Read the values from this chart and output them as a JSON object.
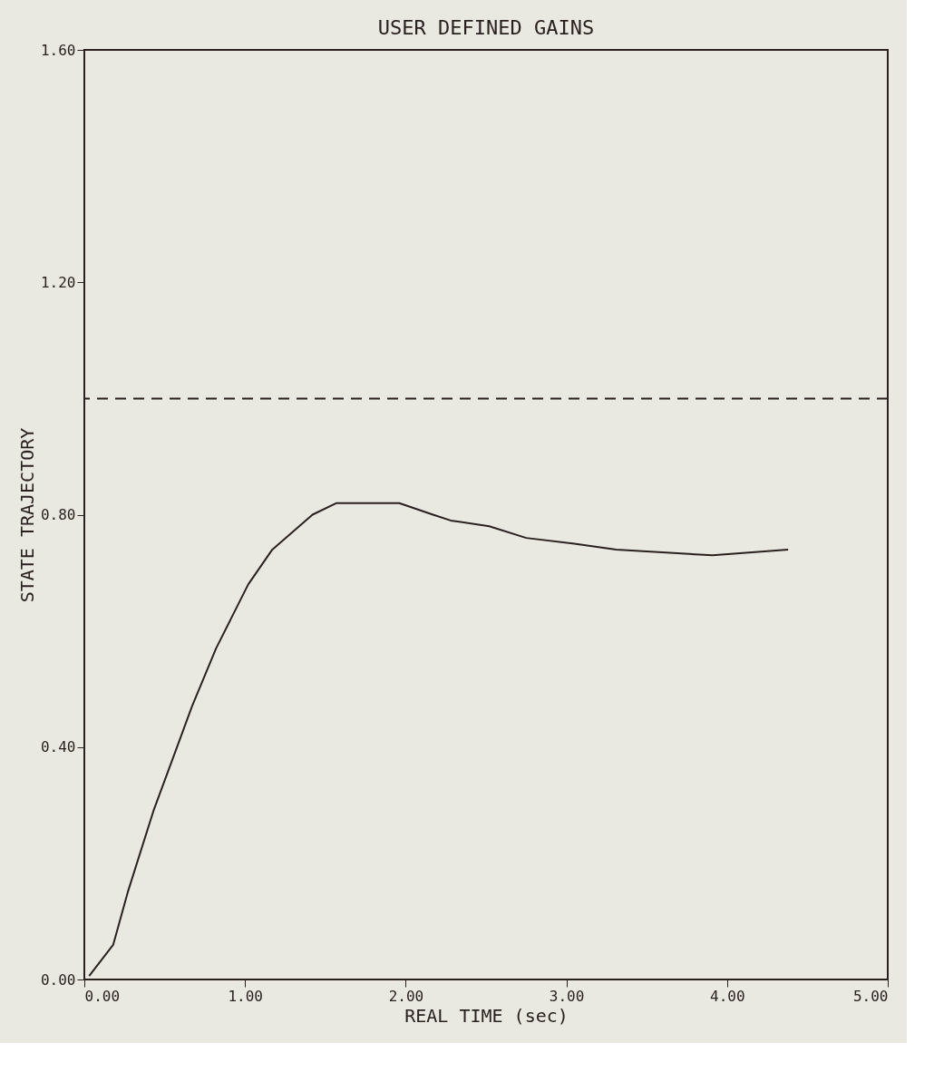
{
  "chart_data": {
    "type": "line",
    "title": "USER DEFINED GAINS",
    "xlabel": "REAL TIME (sec)",
    "ylabel": "STATE TRAJECTORY",
    "x": [
      0.03,
      0.18,
      0.27,
      0.43,
      0.55,
      0.67,
      0.82,
      1.02,
      1.17,
      1.42,
      1.57,
      1.75,
      1.96,
      2.17,
      2.28,
      2.52,
      2.75,
      3.05,
      3.31,
      3.91,
      4.38
    ],
    "series": [
      {
        "color": "#2a2020",
        "values": [
          0.006,
          0.06,
          0.15,
          0.29,
          0.38,
          0.47,
          0.57,
          0.68,
          0.74,
          0.8,
          0.82,
          0.82,
          0.82,
          0.8,
          0.79,
          0.78,
          0.76,
          0.75,
          0.74,
          0.73,
          0.74
        ]
      }
    ],
    "xlim": [
      0,
      5
    ],
    "ylim": [
      0,
      1.6
    ],
    "xticks": [
      {
        "value": 0,
        "label": "0.00"
      },
      {
        "value": 1,
        "label": "1.00"
      },
      {
        "value": 2,
        "label": "2.00"
      },
      {
        "value": 3,
        "label": "3.00"
      },
      {
        "value": 4,
        "label": "4.00"
      },
      {
        "value": 5,
        "label": "5.00"
      }
    ],
    "yticks": [
      {
        "value": 0,
        "label": "0.00"
      },
      {
        "value": 0.4,
        "label": "0.40"
      },
      {
        "value": 0.8,
        "label": "0.80"
      },
      {
        "value": 1.2,
        "label": "1.20"
      },
      {
        "value": 1.6,
        "label": "1.60"
      }
    ],
    "ref_lines": [
      {
        "axis": "y",
        "value": 1.0,
        "line_style": "dashed",
        "color": "#2a2020"
      }
    ],
    "grid": false,
    "line_style": "solid",
    "marker": "none"
  }
}
